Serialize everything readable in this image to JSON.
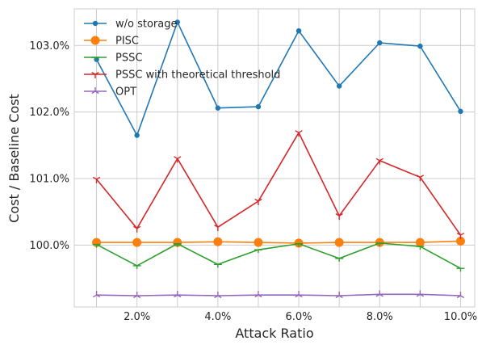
{
  "chart_data": {
    "type": "line",
    "xlabel": "Attack Ratio",
    "ylabel": "Cost / Baseline Cost",
    "x": [
      1,
      2,
      3,
      4,
      5,
      6,
      7,
      8,
      9,
      10
    ],
    "xlim": [
      0.45,
      10.35
    ],
    "ylim": [
      99.07,
      103.55
    ],
    "x_ticks": [
      2,
      4,
      6,
      8,
      10
    ],
    "x_tick_labels": [
      "2.0%",
      "4.0%",
      "6.0%",
      "8.0%",
      "10.0%"
    ],
    "y_ticks": [
      100,
      101,
      102,
      103
    ],
    "y_tick_labels": [
      "100.0%",
      "101.0%",
      "102.0%",
      "103.0%"
    ],
    "grid": true,
    "legend_position": "top-left",
    "series": [
      {
        "name": "w/o storage",
        "color": "#1f77b4",
        "marker": "circle-small",
        "values": [
          102.79,
          101.65,
          103.35,
          102.06,
          102.08,
          103.22,
          102.39,
          103.04,
          102.99,
          102.01
        ]
      },
      {
        "name": "PISC",
        "color": "#ff7f0e",
        "marker": "circle-large",
        "values": [
          100.04,
          100.04,
          100.04,
          100.05,
          100.04,
          100.03,
          100.04,
          100.04,
          100.04,
          100.06
        ]
      },
      {
        "name": "PSSC",
        "color": "#2ca02c",
        "marker": "tick-down",
        "values": [
          100.01,
          99.69,
          100.02,
          99.71,
          99.93,
          100.02,
          99.8,
          100.03,
          99.98,
          99.65
        ]
      },
      {
        "name": "PSSC with theoretical threshold",
        "color": "#d62728",
        "marker": "tri-down",
        "values": [
          100.99,
          100.25,
          101.3,
          100.27,
          100.66,
          101.69,
          100.44,
          101.27,
          101.02,
          100.15
        ]
      },
      {
        "name": "OPT",
        "color": "#9467bd",
        "marker": "tri-up",
        "values": [
          99.25,
          99.24,
          99.25,
          99.24,
          99.25,
          99.25,
          99.24,
          99.26,
          99.26,
          99.24
        ]
      }
    ]
  }
}
